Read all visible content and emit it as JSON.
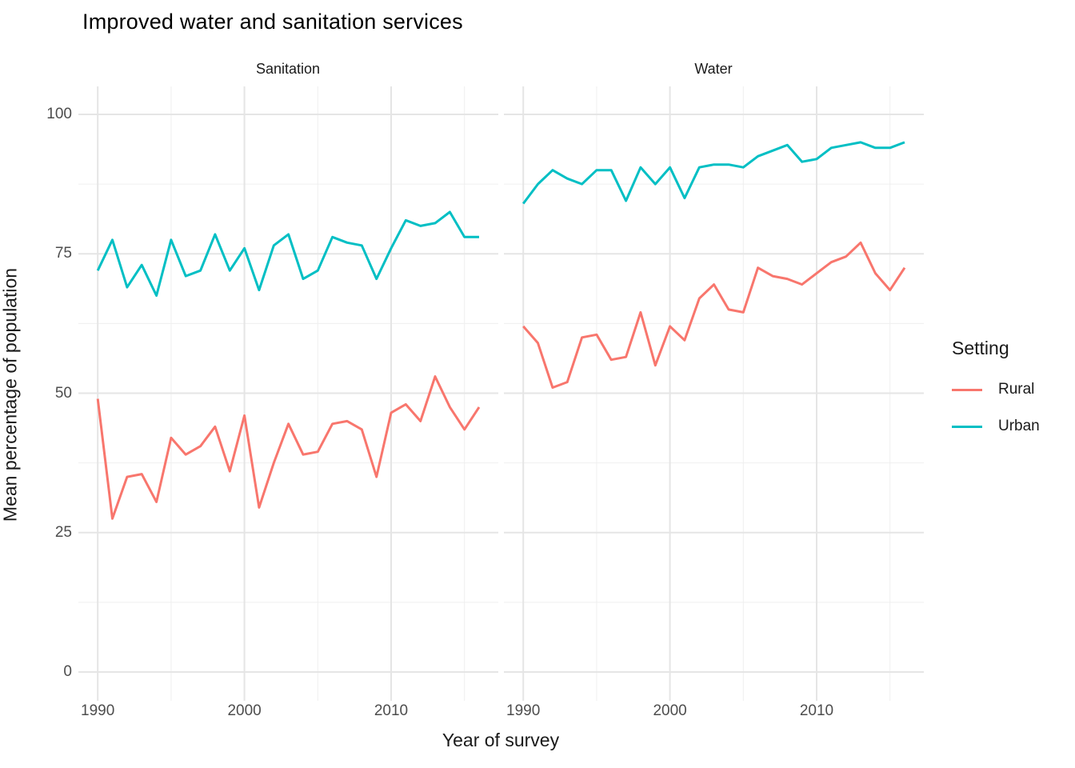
{
  "chart_data": {
    "type": "line",
    "title": "Improved water and sanitation services",
    "xlabel": "Year of survey",
    "ylabel": "Mean percentage of population",
    "legend_title": "Setting",
    "legend_position": "right",
    "grid": true,
    "x": [
      1990,
      1991,
      1992,
      1993,
      1994,
      1995,
      1996,
      1997,
      1998,
      1999,
      2000,
      2001,
      2002,
      2003,
      2004,
      2005,
      2006,
      2007,
      2008,
      2009,
      2010,
      2011,
      2012,
      2013,
      2014,
      2015,
      2016
    ],
    "axes": {
      "ylim": [
        0,
        100
      ],
      "xlim": [
        1990,
        2016
      ],
      "y_ticks": [
        0,
        25,
        50,
        75,
        100
      ],
      "y_minor_ticks": [
        12.5,
        37.5,
        62.5,
        87.5
      ],
      "x_ticks": [
        1990,
        2000,
        2010
      ],
      "x_minor_ticks": [
        1995,
        2005,
        2015
      ]
    },
    "colors": {
      "rural": "#F8766D",
      "urban": "#00BFC4"
    },
    "facets": [
      {
        "label": "Sanitation",
        "series": [
          {
            "name": "Rural",
            "color": "#F8766D",
            "values": [
              49,
              27.5,
              35,
              35.5,
              30.5,
              42,
              39,
              40.5,
              44,
              36,
              46,
              29.5,
              37.5,
              44.5,
              39,
              39.5,
              44.5,
              45,
              43.5,
              35,
              46.5,
              48,
              45,
              53,
              47.5,
              43.5,
              47.5
            ]
          },
          {
            "name": "Urban",
            "color": "#00BFC4",
            "values": [
              72,
              77.5,
              69,
              73,
              67.5,
              77.5,
              71,
              72,
              78.5,
              72,
              76,
              68.5,
              76.5,
              78.5,
              70.5,
              72,
              78,
              77,
              76.5,
              70.5,
              76,
              81,
              80,
              80.5,
              82.5,
              78,
              78
            ]
          }
        ]
      },
      {
        "label": "Water",
        "series": [
          {
            "name": "Rural",
            "color": "#F8766D",
            "values": [
              62,
              59,
              51,
              52,
              60,
              60.5,
              56,
              56.5,
              64.5,
              55,
              62,
              59.5,
              67,
              69.5,
              65,
              64.5,
              72.5,
              71,
              70.5,
              69.5,
              71.5,
              73.5,
              74.5,
              77,
              71.5,
              68.5,
              72.5
            ]
          },
          {
            "name": "Urban",
            "color": "#00BFC4",
            "values": [
              84,
              87.5,
              90,
              88.5,
              87.5,
              90,
              90,
              84.5,
              90.5,
              87.5,
              90.5,
              85,
              90.5,
              91,
              91,
              90.5,
              92.5,
              93.5,
              94.5,
              91.5,
              92,
              94,
              94.5,
              95,
              94,
              94,
              95
            ]
          }
        ]
      }
    ],
    "style": {
      "background": "#ffffff",
      "grid_major_color": "#e5e5e5",
      "grid_minor_color": "#efefef",
      "tick_label_color": "#4d4d4d",
      "text_color": "#1a1a1a"
    }
  }
}
